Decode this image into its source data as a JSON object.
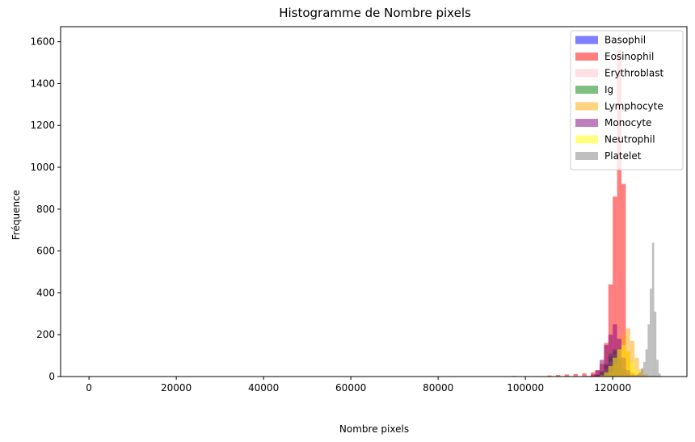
{
  "chart_data": {
    "type": "bar",
    "title": "Histogramme de Nombre pixels",
    "xlabel": "Nombre pixels",
    "ylabel": "Fréquence",
    "xlim": [
      -6500,
      137000
    ],
    "ylim": [
      0,
      1672
    ],
    "xticks": [
      0,
      20000,
      40000,
      60000,
      80000,
      100000,
      120000
    ],
    "yticks": [
      0,
      200,
      400,
      600,
      800,
      1000,
      1200,
      1400,
      1600
    ],
    "grid": false,
    "legend_position": "top-right",
    "series": [
      {
        "name": "Basophil",
        "color": "#0000ff",
        "alpha": 0.5,
        "bins": [
          [
            114000,
            1
          ],
          [
            115000,
            3
          ],
          [
            116000,
            8
          ],
          [
            117000,
            20
          ],
          [
            118000,
            55
          ],
          [
            119000,
            95
          ],
          [
            120000,
            120
          ],
          [
            121000,
            80
          ],
          [
            122000,
            35
          ],
          [
            123000,
            12
          ],
          [
            124000,
            4
          ]
        ]
      },
      {
        "name": "Eosinophil",
        "color": "#ff0000",
        "alpha": 0.5,
        "bins": [
          [
            97000,
            3
          ],
          [
            105000,
            5
          ],
          [
            107000,
            8
          ],
          [
            109000,
            10
          ],
          [
            111000,
            12
          ],
          [
            113000,
            15
          ],
          [
            115000,
            20
          ],
          [
            116000,
            30
          ],
          [
            117000,
            60
          ],
          [
            118000,
            160
          ],
          [
            119000,
            440
          ],
          [
            120000,
            860
          ],
          [
            121000,
            1560
          ],
          [
            122000,
            920
          ],
          [
            123000,
            120
          ],
          [
            124000,
            20
          ],
          [
            125000,
            10
          ],
          [
            126000,
            5
          ]
        ]
      },
      {
        "name": "Erythroblast",
        "color": "#ffc0cb",
        "alpha": 0.5,
        "bins": [
          [
            116000,
            3
          ],
          [
            117000,
            10
          ],
          [
            118000,
            35
          ],
          [
            119000,
            70
          ],
          [
            120000,
            110
          ],
          [
            121000,
            90
          ],
          [
            122000,
            45
          ],
          [
            123000,
            15
          ],
          [
            124000,
            4
          ]
        ]
      },
      {
        "name": "Ig",
        "color": "#008000",
        "alpha": 0.5,
        "bins": [
          [
            115000,
            2
          ],
          [
            116000,
            8
          ],
          [
            117000,
            25
          ],
          [
            118000,
            60
          ],
          [
            119000,
            110
          ],
          [
            120000,
            130
          ],
          [
            121000,
            90
          ],
          [
            122000,
            40
          ],
          [
            123000,
            12
          ],
          [
            124000,
            3
          ]
        ]
      },
      {
        "name": "Lymphocyte",
        "color": "#ffa500",
        "alpha": 0.5,
        "bins": [
          [
            118000,
            5
          ],
          [
            119000,
            20
          ],
          [
            120000,
            60
          ],
          [
            121000,
            130
          ],
          [
            122000,
            200
          ],
          [
            123000,
            230
          ],
          [
            124000,
            170
          ],
          [
            125000,
            90
          ],
          [
            126000,
            35
          ],
          [
            127000,
            10
          ]
        ]
      },
      {
        "name": "Monocyte",
        "color": "#800080",
        "alpha": 0.5,
        "bins": [
          [
            114000,
            3
          ],
          [
            115000,
            10
          ],
          [
            116000,
            30
          ],
          [
            117000,
            80
          ],
          [
            118000,
            150
          ],
          [
            119000,
            200
          ],
          [
            120000,
            250
          ],
          [
            121000,
            180
          ],
          [
            122000,
            90
          ],
          [
            123000,
            30
          ],
          [
            124000,
            8
          ]
        ]
      },
      {
        "name": "Neutrophil",
        "color": "#ffff00",
        "alpha": 0.5,
        "bins": [
          [
            117000,
            5
          ],
          [
            118000,
            20
          ],
          [
            119000,
            50
          ],
          [
            120000,
            90
          ],
          [
            121000,
            130
          ],
          [
            122000,
            150
          ],
          [
            123000,
            120
          ],
          [
            124000,
            70
          ],
          [
            125000,
            30
          ],
          [
            126000,
            10
          ]
        ]
      },
      {
        "name": "Platelet",
        "color": "#808080",
        "alpha": 0.5,
        "bins": [
          [
            125000,
            5
          ],
          [
            125500,
            10
          ],
          [
            126000,
            20
          ],
          [
            126500,
            40
          ],
          [
            127000,
            70
          ],
          [
            127500,
            130
          ],
          [
            128000,
            250
          ],
          [
            128500,
            420
          ],
          [
            129000,
            640
          ],
          [
            129500,
            310
          ],
          [
            130000,
            80
          ],
          [
            130500,
            15
          ]
        ]
      }
    ]
  }
}
